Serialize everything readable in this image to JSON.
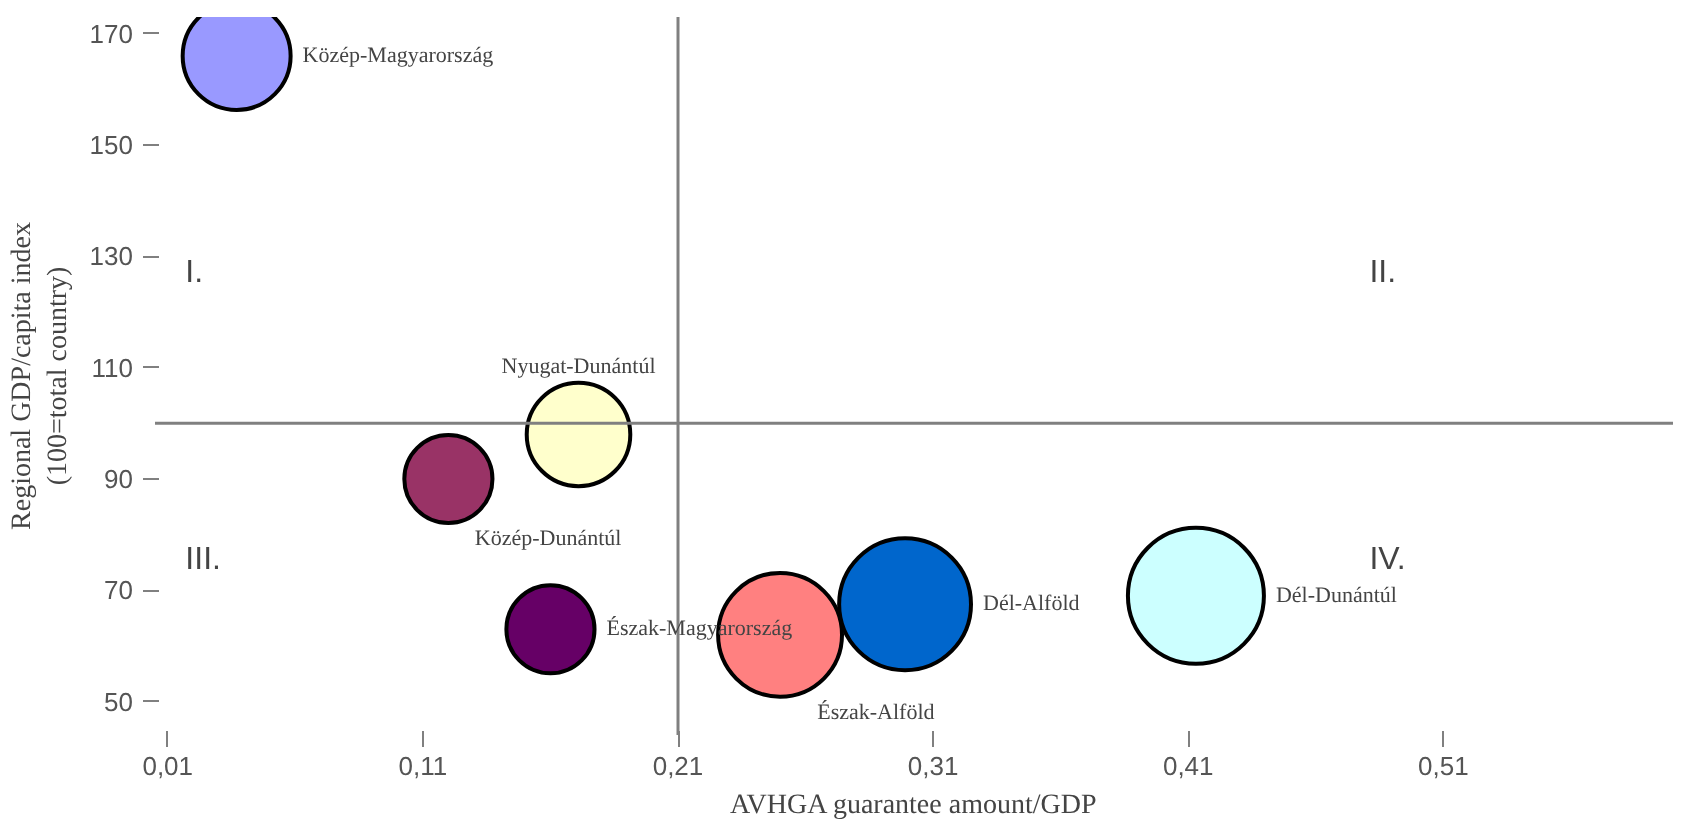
{
  "chart_data": {
    "type": "bubble",
    "xlabel": "AVHGA guarantee amount/GDP",
    "ylabel": "Regional GDP/capita index\n(100=total country)",
    "xlim": [
      0.005,
      0.6
    ],
    "ylim": [
      44,
      173
    ],
    "xticks": [
      {
        "value": 0.01,
        "label": "0,01"
      },
      {
        "value": 0.11,
        "label": "0,11"
      },
      {
        "value": 0.21,
        "label": "0,21"
      },
      {
        "value": 0.31,
        "label": "0,31"
      },
      {
        "value": 0.41,
        "label": "0,41"
      },
      {
        "value": 0.51,
        "label": "0,51"
      }
    ],
    "yticks": [
      50,
      70,
      90,
      110,
      130,
      150,
      170
    ],
    "ref_lines": [
      {
        "axis": "y",
        "value": 100,
        "color": "#808080"
      },
      {
        "axis": "x",
        "value": 0.21,
        "color": "#808080"
      }
    ],
    "annotations": [
      "I.",
      "II.",
      "III.",
      "IV."
    ],
    "series": [
      {
        "name": "Közép-Magyarország",
        "color": "#9999ff",
        "x": [
          0.037
        ],
        "values": [
          166
        ],
        "sizes": [
          0.63
        ]
      },
      {
        "name": "Nyugat-Dunántúl",
        "color": "#ffffcc",
        "x": [
          0.171
        ],
        "values": [
          98
        ],
        "sizes": [
          0.58
        ]
      },
      {
        "name": "Közép-Dunántúl",
        "color": "#993366",
        "x": [
          0.12
        ],
        "values": [
          90
        ],
        "sizes": [
          0.42
        ]
      },
      {
        "name": "Észak-Magyarország",
        "color": "#660066",
        "x": [
          0.16
        ],
        "values": [
          63
        ],
        "sizes": [
          0.42
        ]
      },
      {
        "name": "Észak-Alföld",
        "color": "#ff8080",
        "x": [
          0.25
        ],
        "values": [
          62
        ],
        "sizes": [
          0.83
        ]
      },
      {
        "name": "Dél-Alföld",
        "color": "#0066cc",
        "x": [
          0.299
        ],
        "values": [
          67.5
        ],
        "sizes": [
          0.94
        ]
      },
      {
        "name": "Dél-Dunántúl",
        "color": "#ccffff",
        "x": [
          0.413
        ],
        "values": [
          69
        ],
        "sizes": [
          1
        ]
      }
    ],
    "grid": false
  }
}
